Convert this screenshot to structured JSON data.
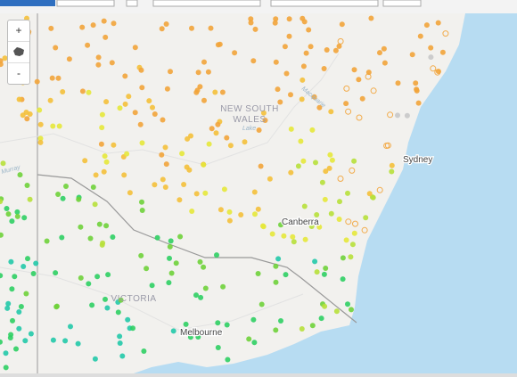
{
  "controls": {
    "zoom_in": "+",
    "zoom_out": "-"
  },
  "region_labels": {
    "nsw_line1": "NEW SOUTH",
    "nsw_line2": "WALES",
    "vic": "VICTORIA"
  },
  "place_labels": {
    "sydney": "Sydney",
    "canberra": "Canberra",
    "melbourne": "Melbourne"
  },
  "feature_labels": {
    "lake": "Lake",
    "murray": "Murray",
    "macquarie": "Macquarie"
  }
}
